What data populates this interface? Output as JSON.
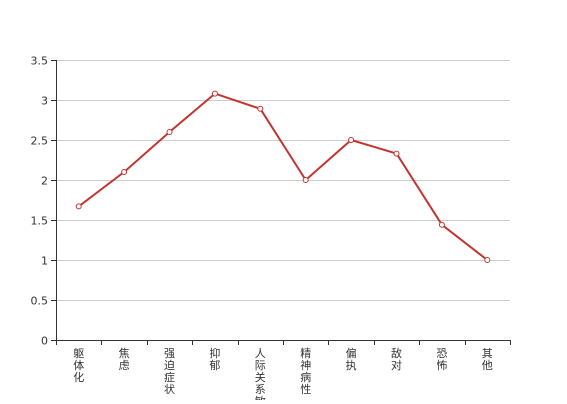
{
  "chart_data": {
    "type": "line",
    "categories": [
      "躯体化",
      "焦虑",
      "强迫症状",
      "抑郁",
      "人际关系敏感",
      "精神病性",
      "偏执",
      "敌对",
      "恐怖",
      "其他"
    ],
    "series": [
      {
        "values": [
          1.67,
          2.1,
          2.6,
          3.08,
          2.89,
          2.0,
          2.5,
          2.33,
          1.44,
          1.0
        ],
        "color": "#c23531"
      }
    ],
    "ylim": [
      0,
      3.5
    ],
    "yticks": [
      "0",
      "0.5",
      "1",
      "1.5",
      "2",
      "2.5",
      "3",
      "3.5"
    ],
    "grid": "horizontal",
    "x_label_orientation": "vertical",
    "colors": {
      "axis": "#333333",
      "grid": "#cccccc",
      "line": "#c23531",
      "marker_fill": "#ffffff"
    }
  }
}
